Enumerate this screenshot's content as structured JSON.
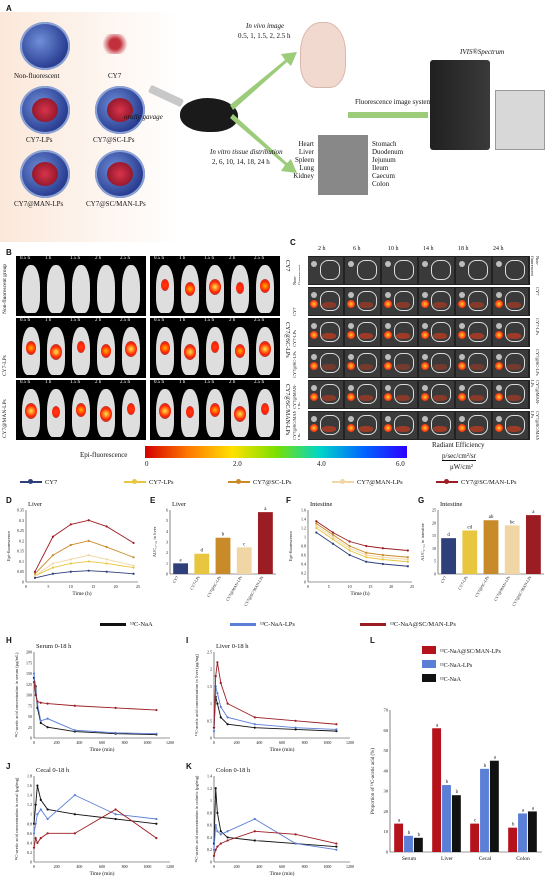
{
  "panel_labels": {
    "A": "A",
    "B": "B",
    "C": "C",
    "D": "D",
    "E": "E",
    "F": "F",
    "G": "G",
    "H": "H",
    "I": "I",
    "J": "J",
    "K": "K",
    "L": "L"
  },
  "schematic": {
    "formulations": [
      "Non-fluorescent",
      "CY7",
      "CY7-LPs",
      "CY7@SC-LPs",
      "CY7@MAN-LPs",
      "CY7@SC/MAN-LPs"
    ],
    "gavage": "orally gavage",
    "in_vivo_title": "In vivo image",
    "in_vivo_times": "0.5, 1, 1.5, 2, 2.5 h",
    "in_vitro_title": "In vitro tissue distribution",
    "in_vitro_times": "2, 6, 10, 14, 18, 24 h",
    "organs_left": [
      "Heart",
      "Liver",
      "Spleen",
      "Lung",
      "Kidney"
    ],
    "organs_right": [
      "Stomach",
      "Duodenum",
      "Jejunum",
      "Ileum",
      "Caecum",
      "Colon"
    ],
    "system": "Fluorescence image system",
    "instrument": "IVIS®Spectrum"
  },
  "panel_b": {
    "times": [
      "0.5 h",
      "1 h",
      "1.5 h",
      "2 h",
      "2.5 h"
    ],
    "row_labels": [
      "Non-fluorescent group",
      "CY7-LPs",
      "CY7@MAN-LPs"
    ],
    "right_labels": [
      "CY7",
      "CY7@SC-LPs",
      "CY7@SC/MAN-LPs"
    ]
  },
  "panel_c": {
    "times": [
      "2 h",
      "6 h",
      "10 h",
      "14 h",
      "18 h",
      "24 h"
    ],
    "row_labels": [
      "Non-fluorescent group",
      "CY7",
      "CY7-LPs",
      "CY7@SC-LPs",
      "CY7@MAN-LPs",
      "CY7@SC/MAN-LPs"
    ]
  },
  "colorbar": {
    "title": "Epi-fluorescence",
    "ticks": [
      "0",
      "2.0",
      "4.0",
      "6.0"
    ],
    "unit_title": "Radiant Efficiency",
    "unit_num": "p/sec/cm²/sr",
    "unit_den": "μW/cm²"
  },
  "legend1": {
    "items": [
      "CY7",
      "CY7-LPs",
      "CY7@SC-LPs",
      "CY7@MAN-LPs",
      "CY7@SC/MAN-LPs"
    ],
    "colors": [
      "#2f3f7a",
      "#e8c640",
      "#c98a2a",
      "#f0d6a4",
      "#9b1c22"
    ]
  },
  "legend2": {
    "items": [
      "¹³C-NaA",
      "¹³C-NaA-LPs",
      "¹³C-NaA@SC/MAN-LPs"
    ],
    "colors": [
      "#111111",
      "#5b7fd6",
      "#9b1c22"
    ]
  },
  "panel_l_legend": {
    "items": [
      "¹³C-NaA@SC/MAN-LPs",
      "¹³C-NaA-LPs",
      "¹³C-NaA"
    ],
    "colors": [
      "#b5121b",
      "#5b7fd6",
      "#111111"
    ]
  },
  "chart_data": [
    {
      "panel": "D",
      "type": "line",
      "title": "Liver",
      "xlabel": "Time (h)",
      "ylabel": "Epi-fluorescence",
      "x": [
        2,
        6,
        10,
        14,
        18,
        24
      ],
      "xlim": [
        0,
        25
      ],
      "ylim": [
        0,
        0.35
      ],
      "xticks": [
        "0",
        "5",
        "10",
        "15",
        "20",
        "25"
      ],
      "yticks": [
        "0",
        "0.05",
        "0.1",
        "0.15",
        "0.2",
        "0.25",
        "0.3",
        "0.35"
      ],
      "series": [
        {
          "name": "CY7",
          "values": [
            0.02,
            0.04,
            0.05,
            0.055,
            0.05,
            0.04
          ]
        },
        {
          "name": "CY7-LPs",
          "values": [
            0.03,
            0.07,
            0.09,
            0.1,
            0.09,
            0.07
          ]
        },
        {
          "name": "CY7@SC-LPs",
          "values": [
            0.04,
            0.13,
            0.18,
            0.2,
            0.17,
            0.12
          ]
        },
        {
          "name": "CY7@MAN-LPs",
          "values": [
            0.03,
            0.09,
            0.11,
            0.13,
            0.11,
            0.08
          ]
        },
        {
          "name": "CY7@SC/MAN-LPs",
          "values": [
            0.05,
            0.22,
            0.28,
            0.3,
            0.27,
            0.19
          ]
        }
      ]
    },
    {
      "panel": "E",
      "type": "bar",
      "title": "Liver",
      "ylabel": "AUC₂₋₂₄ in liver",
      "categories": [
        "CY7",
        "CY7-LPs",
        "CY7@SC-LPs",
        "CY7@MAN-LPs",
        "CY7@SC/MAN-LPs"
      ],
      "values": [
        1.0,
        1.9,
        3.4,
        2.5,
        5.8
      ],
      "ylim": [
        0,
        6
      ],
      "yticks": [
        "0",
        "1",
        "2",
        "3",
        "4",
        "5",
        "6"
      ],
      "letters": [
        "e",
        "d",
        "b",
        "c",
        "a"
      ]
    },
    {
      "panel": "F",
      "type": "line",
      "title": "Intestine",
      "xlabel": "Time (h)",
      "ylabel": "Epi-fluorescence",
      "x": [
        2,
        6,
        10,
        14,
        18,
        24
      ],
      "xlim": [
        0,
        25
      ],
      "ylim": [
        0,
        1.6
      ],
      "xticks": [
        "0",
        "5",
        "10",
        "15",
        "20",
        "25"
      ],
      "yticks": [
        "0",
        "0.2",
        "0.4",
        "0.6",
        "0.8",
        "1",
        "1.2",
        "1.4",
        "1.6"
      ],
      "series": [
        {
          "name": "CY7",
          "values": [
            1.1,
            0.85,
            0.6,
            0.45,
            0.4,
            0.35
          ]
        },
        {
          "name": "CY7-LPs",
          "values": [
            1.2,
            0.95,
            0.7,
            0.55,
            0.5,
            0.45
          ]
        },
        {
          "name": "CY7@SC-LPs",
          "values": [
            1.3,
            1.05,
            0.8,
            0.65,
            0.6,
            0.55
          ]
        },
        {
          "name": "CY7@MAN-LPs",
          "values": [
            1.25,
            1.0,
            0.75,
            0.6,
            0.55,
            0.5
          ]
        },
        {
          "name": "CY7@SC/MAN-LPs",
          "values": [
            1.35,
            1.1,
            0.9,
            0.8,
            0.75,
            0.7
          ]
        }
      ]
    },
    {
      "panel": "G",
      "type": "bar",
      "title": "Intestine",
      "ylabel": "AUC₂₋₂₄ in intestine",
      "categories": [
        "CY7",
        "CY7-LPs",
        "CY7@SC-LPs",
        "CY7@MAN-LPs",
        "CY7@SC/MAN-LPs"
      ],
      "values": [
        14,
        17,
        21,
        19,
        23
      ],
      "ylim": [
        0,
        25
      ],
      "yticks": [
        "0",
        "5",
        "10",
        "15",
        "20",
        "25"
      ],
      "letters": [
        "d",
        "cd",
        "ab",
        "bc",
        "a"
      ]
    },
    {
      "panel": "H",
      "type": "line",
      "title": "Serum 0-18 h",
      "xlabel": "Time (min)",
      "ylabel": "¹³C-acetic acid concentration in serum (μg/mL)",
      "x": [
        0,
        15,
        30,
        60,
        120,
        360,
        720,
        1080
      ],
      "xlim": [
        0,
        1200
      ],
      "ylim": [
        0,
        200
      ],
      "xticks": [
        "0",
        "200",
        "400",
        "600",
        "800",
        "1000",
        "1200"
      ],
      "yticks": [
        "0",
        "25",
        "50",
        "75",
        "100",
        "125",
        "150",
        "175",
        "200"
      ],
      "series": [
        {
          "name": "¹³C-NaA",
          "values": [
            140,
            120,
            70,
            35,
            25,
            15,
            10,
            8
          ]
        },
        {
          "name": "¹³C-NaA-LPs",
          "values": [
            150,
            110,
            80,
            40,
            45,
            18,
            12,
            10
          ]
        },
        {
          "name": "¹³C-NaA@SC/MAN-LPs",
          "values": [
            130,
            100,
            85,
            82,
            80,
            75,
            70,
            65
          ]
        }
      ]
    },
    {
      "panel": "I",
      "type": "line",
      "title": "Liver 0-18 h",
      "xlabel": "Time (min)",
      "ylabel": "¹³C-acetic acid concentration in liver (μg/mg)",
      "x": [
        0,
        15,
        30,
        60,
        120,
        360,
        720,
        1080
      ],
      "xlim": [
        0,
        1200
      ],
      "ylim": [
        0,
        2.5
      ],
      "xticks": [
        "0",
        "200",
        "400",
        "600",
        "800",
        "1000",
        "1200"
      ],
      "yticks": [
        "0",
        "0.5",
        "1",
        "1.5",
        "2",
        "2.5"
      ],
      "series": [
        {
          "name": "¹³C-NaA",
          "values": [
            0.3,
            1.2,
            1.0,
            0.6,
            0.4,
            0.3,
            0.25,
            0.2
          ]
        },
        {
          "name": "¹³C-NaA-LPs",
          "values": [
            0.2,
            1.5,
            1.3,
            0.9,
            0.6,
            0.4,
            0.3,
            0.25
          ]
        },
        {
          "name": "¹³C-NaA@SC/MAN-LPs",
          "values": [
            0.3,
            1.8,
            2.2,
            1.6,
            1.0,
            0.6,
            0.5,
            0.4
          ]
        }
      ]
    },
    {
      "panel": "J",
      "type": "line",
      "title": "Cecal 0-18 h",
      "xlabel": "Time (min)",
      "ylabel": "¹³C-acetic acid concentration in cecal (μg/mg)",
      "x": [
        0,
        15,
        30,
        60,
        120,
        360,
        720,
        1080
      ],
      "xlim": [
        0,
        1200
      ],
      "ylim": [
        0,
        1.8
      ],
      "xticks": [
        "0",
        "200",
        "400",
        "600",
        "800",
        "1000",
        "1200"
      ],
      "yticks": [
        "0",
        "0.2",
        "0.4",
        "0.6",
        "0.8",
        "1",
        "1.2",
        "1.4",
        "1.6",
        "1.8"
      ],
      "series": [
        {
          "name": "¹³C-NaA",
          "values": [
            0.8,
            1.2,
            1.6,
            1.3,
            1.1,
            1.0,
            0.9,
            0.8
          ]
        },
        {
          "name": "¹³C-NaA-LPs",
          "values": [
            0.6,
            0.8,
            1.0,
            1.1,
            0.9,
            1.4,
            1.0,
            0.9
          ]
        },
        {
          "name": "¹³C-NaA@SC/MAN-LPs",
          "values": [
            0.3,
            0.5,
            0.4,
            0.5,
            0.6,
            0.6,
            1.1,
            0.5
          ]
        }
      ]
    },
    {
      "panel": "K",
      "type": "line",
      "title": "Colon 0-18 h",
      "xlabel": "Time (min)",
      "ylabel": "¹³C-acetic acid concentration in colonic (μg/mg)",
      "x": [
        0,
        15,
        30,
        60,
        120,
        360,
        720,
        1080
      ],
      "xlim": [
        0,
        1200
      ],
      "ylim": [
        0,
        1.4
      ],
      "xticks": [
        "0",
        "200",
        "400",
        "600",
        "800",
        "1000",
        "1200"
      ],
      "yticks": [
        "0",
        "0.2",
        "0.4",
        "0.6",
        "0.8",
        "1",
        "1.2",
        "1.4"
      ],
      "series": [
        {
          "name": "¹³C-NaA",
          "values": [
            0.3,
            1.2,
            0.8,
            0.5,
            0.4,
            0.35,
            0.3,
            0.25
          ]
        },
        {
          "name": "¹³C-NaA-LPs",
          "values": [
            0.2,
            0.6,
            0.5,
            0.45,
            0.5,
            0.7,
            0.3,
            0.2
          ]
        },
        {
          "name": "¹³C-NaA@SC/MAN-LPs",
          "values": [
            0.1,
            0.2,
            0.25,
            0.3,
            0.35,
            0.5,
            0.45,
            0.3
          ]
        }
      ]
    },
    {
      "panel": "L",
      "type": "bar",
      "ylabel": "Proportion of ¹³C-acetic acid (%)",
      "categories": [
        "Serum",
        "Liver",
        "Cecal",
        "Colon"
      ],
      "ylim": [
        0,
        70
      ],
      "yticks": [
        "0",
        "10",
        "20",
        "30",
        "40",
        "50",
        "60",
        "70"
      ],
      "series": [
        {
          "name": "¹³C-NaA@SC/MAN-LPs",
          "values": [
            14,
            61,
            14,
            12
          ],
          "letters": [
            "a",
            "a",
            "c",
            "b"
          ]
        },
        {
          "name": "¹³C-NaA-LPs",
          "values": [
            8,
            33,
            41,
            19
          ],
          "letters": [
            "b",
            "b",
            "b",
            "a"
          ]
        },
        {
          "name": "¹³C-NaA",
          "values": [
            7,
            28,
            45,
            20
          ],
          "letters": [
            "b",
            "b",
            "a",
            "a"
          ]
        }
      ]
    }
  ]
}
